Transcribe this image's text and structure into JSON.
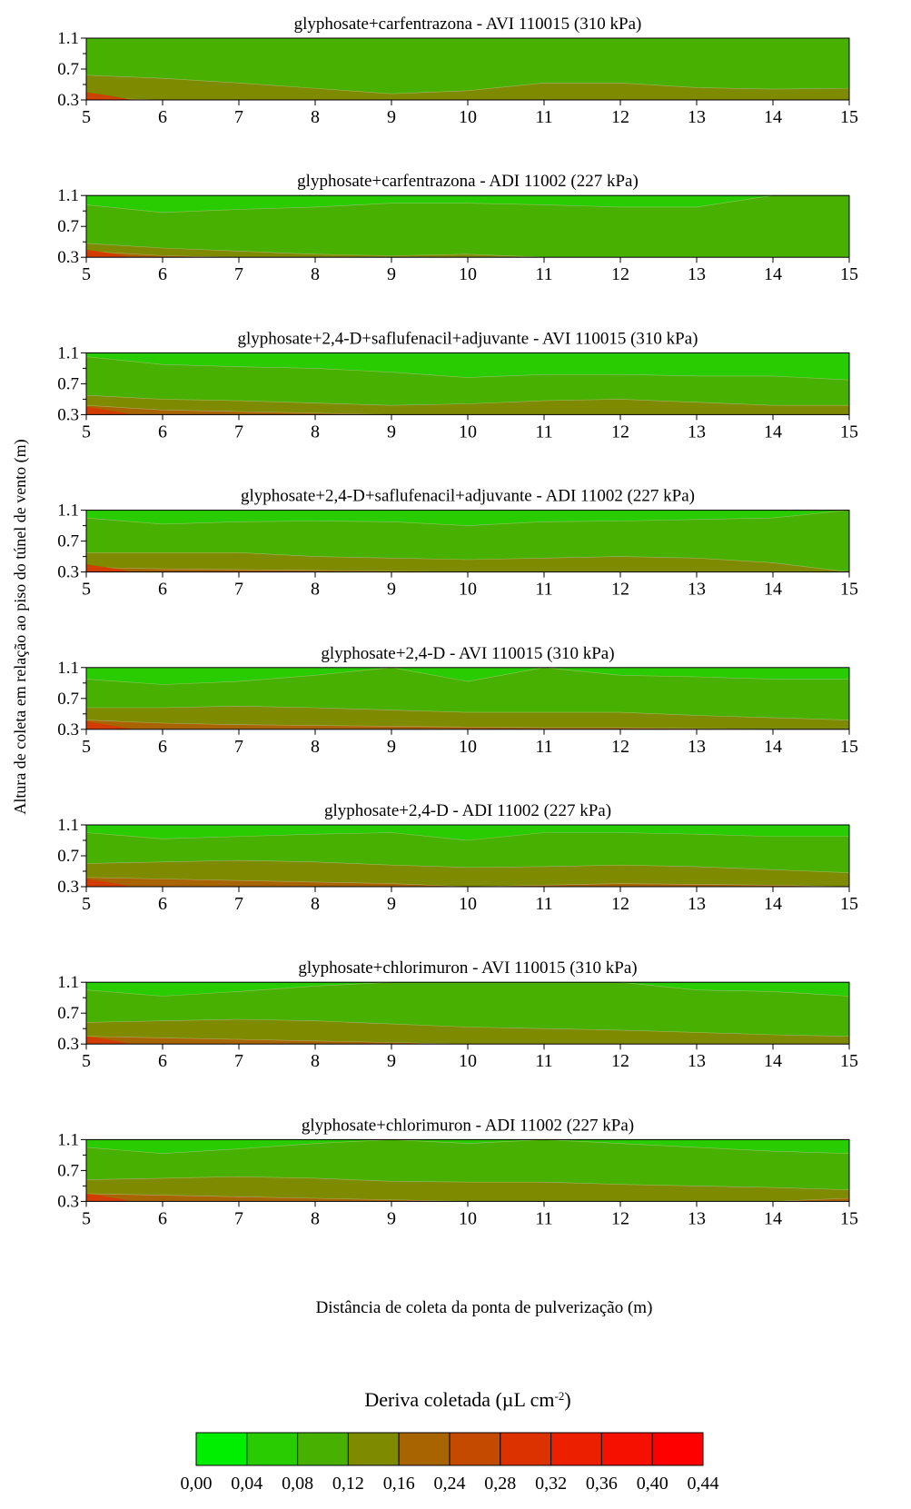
{
  "figure": {
    "ylabel": "Altura de coleta em relação ao piso do túnel de vento (m)",
    "xlabel": "Distância de coleta da ponta de pulverização (m)",
    "colorbar_title_main": "Deriva coletada (µL cm",
    "colorbar_title_sup": "-2",
    "colorbar_title_end": ")"
  },
  "chart_data": {
    "type": "heatmap",
    "x_ticks": [
      5,
      6,
      7,
      8,
      9,
      10,
      11,
      12,
      13,
      14,
      15
    ],
    "y_ticks": [
      "0.3",
      "0.7",
      "1.1"
    ],
    "xlim": [
      5,
      15
    ],
    "ylim": [
      0.3,
      1.1
    ],
    "colorscale": {
      "levels": [
        "0,00",
        "0,04",
        "0,08",
        "0,12",
        "0,16",
        "0,24",
        "0,28",
        "0,32",
        "0,36",
        "0,40",
        "0,44"
      ],
      "colors": [
        "#00ee00",
        "#28cc00",
        "#48b000",
        "#7e8a00",
        "#a86400",
        "#c44a00",
        "#dc3200",
        "#ec2000",
        "#f61000",
        "#ff0000"
      ]
    },
    "panels": [
      {
        "title": "glyphosate+carfentrazona - AVI 110015 (310 kPa)",
        "boundaries": [
          {
            "x": [
              5,
              6,
              7,
              8,
              9,
              10,
              11,
              12,
              13,
              14,
              15
            ],
            "y": [
              0.33,
              0.3,
              0.3,
              0.3,
              0.3,
              0.3,
              0.3,
              0.3,
              0.3,
              0.3,
              0.3
            ]
          },
          {
            "x": [
              5,
              6,
              7,
              8,
              9,
              10,
              11,
              12,
              13,
              14,
              15
            ],
            "y": [
              0.62,
              0.58,
              0.52,
              0.45,
              0.38,
              0.42,
              0.52,
              0.52,
              0.46,
              0.44,
              0.45
            ]
          },
          {
            "x": [
              5,
              6,
              7,
              8,
              9,
              10,
              11,
              12,
              13,
              14,
              15
            ],
            "y": [
              1.1,
              1.1,
              1.1,
              1.1,
              1.1,
              1.1,
              1.1,
              1.1,
              1.1,
              1.1,
              1.1
            ]
          }
        ]
      },
      {
        "title": "glyphosate+carfentrazona - ADI 11002 (227 kPa)",
        "boundaries": [
          {
            "x": [
              5,
              6,
              7,
              8,
              9,
              10,
              11,
              12,
              13,
              14,
              15
            ],
            "y": [
              0.38,
              0.32,
              0.3,
              0.3,
              0.3,
              0.3,
              0.3,
              0.3,
              0.3,
              0.3,
              0.3
            ]
          },
          {
            "x": [
              5,
              6,
              7,
              8,
              9,
              10,
              11,
              12,
              13,
              14,
              15
            ],
            "y": [
              0.48,
              0.42,
              0.38,
              0.34,
              0.32,
              0.34,
              0.3,
              0.3,
              0.3,
              0.3,
              0.3
            ]
          },
          {
            "x": [
              5,
              6,
              7,
              8,
              9,
              10,
              11,
              12,
              13,
              14,
              15
            ],
            "y": [
              0.98,
              0.88,
              0.92,
              0.95,
              1.0,
              1.0,
              0.98,
              0.95,
              0.95,
              1.1,
              1.1
            ]
          }
        ]
      },
      {
        "title": "glyphosate+2,4-D+saflufenacil+adjuvante - AVI 110015 (310 kPa)",
        "boundaries": [
          {
            "x": [
              5,
              6,
              7,
              8,
              9,
              10,
              11,
              12,
              13,
              14,
              15
            ],
            "y": [
              0.42,
              0.36,
              0.34,
              0.32,
              0.3,
              0.3,
              0.3,
              0.3,
              0.3,
              0.3,
              0.3
            ]
          },
          {
            "x": [
              5,
              6,
              7,
              8,
              9,
              10,
              11,
              12,
              13,
              14,
              15
            ],
            "y": [
              0.55,
              0.5,
              0.48,
              0.45,
              0.42,
              0.44,
              0.48,
              0.5,
              0.46,
              0.42,
              0.42
            ]
          },
          {
            "x": [
              5,
              6,
              7,
              8,
              9,
              10,
              11,
              12,
              13,
              14,
              15
            ],
            "y": [
              1.05,
              0.95,
              0.92,
              0.9,
              0.85,
              0.78,
              0.82,
              0.82,
              0.8,
              0.8,
              0.75
            ]
          }
        ]
      },
      {
        "title": "glyphosate+2,4-D+saflufenacil+adjuvante - ADI 11002 (227 kPa)",
        "boundaries": [
          {
            "x": [
              5,
              6,
              7,
              8,
              9,
              10,
              11,
              12,
              13,
              14,
              15
            ],
            "y": [
              0.36,
              0.34,
              0.33,
              0.32,
              0.31,
              0.3,
              0.3,
              0.3,
              0.3,
              0.3,
              0.3
            ]
          },
          {
            "x": [
              5,
              6,
              7,
              8,
              9,
              10,
              11,
              12,
              13,
              14,
              15
            ],
            "y": [
              0.55,
              0.55,
              0.55,
              0.5,
              0.48,
              0.46,
              0.48,
              0.5,
              0.48,
              0.42,
              0.3
            ]
          },
          {
            "x": [
              5,
              6,
              7,
              8,
              9,
              10,
              11,
              12,
              13,
              14,
              15
            ],
            "y": [
              1.0,
              0.92,
              0.95,
              0.96,
              0.95,
              0.9,
              0.95,
              0.96,
              0.98,
              1.0,
              1.1
            ]
          }
        ]
      },
      {
        "title": "glyphosate+2,4-D - AVI 110015 (310 kPa)",
        "boundaries": [
          {
            "x": [
              5,
              6,
              7,
              8,
              9,
              10,
              11,
              12,
              13,
              14,
              15
            ],
            "y": [
              0.42,
              0.38,
              0.36,
              0.35,
              0.34,
              0.33,
              0.32,
              0.32,
              0.31,
              0.3,
              0.3
            ]
          },
          {
            "x": [
              5,
              6,
              7,
              8,
              9,
              10,
              11,
              12,
              13,
              14,
              15
            ],
            "y": [
              0.58,
              0.58,
              0.6,
              0.58,
              0.55,
              0.52,
              0.52,
              0.52,
              0.48,
              0.45,
              0.42
            ]
          },
          {
            "x": [
              5,
              6,
              7,
              8,
              9,
              10,
              11,
              12,
              13,
              14,
              15
            ],
            "y": [
              0.95,
              0.88,
              0.92,
              1.0,
              1.1,
              0.92,
              1.1,
              1.0,
              0.98,
              0.95,
              0.95
            ]
          }
        ]
      },
      {
        "title": "glyphosate+2,4-D - ADI 11002 (227 kPa)",
        "boundaries": [
          {
            "x": [
              5,
              6,
              7,
              8,
              9,
              10,
              11,
              12,
              13,
              14,
              15
            ],
            "y": [
              0.42,
              0.4,
              0.38,
              0.36,
              0.34,
              0.3,
              0.32,
              0.34,
              0.33,
              0.32,
              0.3
            ]
          },
          {
            "x": [
              5,
              6,
              7,
              8,
              9,
              10,
              11,
              12,
              13,
              14,
              15
            ],
            "y": [
              0.6,
              0.62,
              0.64,
              0.62,
              0.58,
              0.55,
              0.56,
              0.58,
              0.56,
              0.52,
              0.48
            ]
          },
          {
            "x": [
              5,
              6,
              7,
              8,
              9,
              10,
              11,
              12,
              13,
              14,
              15
            ],
            "y": [
              1.0,
              0.92,
              0.95,
              0.98,
              1.0,
              0.9,
              1.0,
              1.0,
              0.98,
              0.95,
              0.95
            ]
          }
        ]
      },
      {
        "title": "glyphosate+chlorimuron - AVI 110015 (310 kPa)",
        "boundaries": [
          {
            "x": [
              5,
              6,
              7,
              8,
              9,
              10,
              11,
              12,
              13,
              14,
              15
            ],
            "y": [
              0.4,
              0.38,
              0.36,
              0.34,
              0.32,
              0.3,
              0.3,
              0.3,
              0.3,
              0.3,
              0.3
            ]
          },
          {
            "x": [
              5,
              6,
              7,
              8,
              9,
              10,
              11,
              12,
              13,
              14,
              15
            ],
            "y": [
              0.58,
              0.6,
              0.62,
              0.6,
              0.56,
              0.52,
              0.5,
              0.48,
              0.45,
              0.42,
              0.4
            ]
          },
          {
            "x": [
              5,
              6,
              7,
              8,
              9,
              10,
              11,
              12,
              13,
              14,
              15
            ],
            "y": [
              1.0,
              0.92,
              0.98,
              1.05,
              1.1,
              1.1,
              1.1,
              1.1,
              1.0,
              0.98,
              0.92
            ]
          }
        ]
      },
      {
        "title": "glyphosate+chlorimuron - ADI 11002 (227 kPa)",
        "boundaries": [
          {
            "x": [
              5,
              6,
              7,
              8,
              9,
              10,
              11,
              12,
              13,
              14,
              15
            ],
            "y": [
              0.4,
              0.38,
              0.36,
              0.34,
              0.32,
              0.3,
              0.3,
              0.3,
              0.3,
              0.3,
              0.34
            ]
          },
          {
            "x": [
              5,
              6,
              7,
              8,
              9,
              10,
              11,
              12,
              13,
              14,
              15
            ],
            "y": [
              0.58,
              0.6,
              0.62,
              0.6,
              0.56,
              0.55,
              0.55,
              0.52,
              0.5,
              0.48,
              0.45
            ]
          },
          {
            "x": [
              5,
              6,
              7,
              8,
              9,
              10,
              11,
              12,
              13,
              14,
              15
            ],
            "y": [
              1.0,
              0.92,
              0.98,
              1.05,
              1.1,
              1.05,
              1.1,
              1.05,
              1.0,
              0.95,
              0.92
            ]
          }
        ]
      }
    ]
  }
}
